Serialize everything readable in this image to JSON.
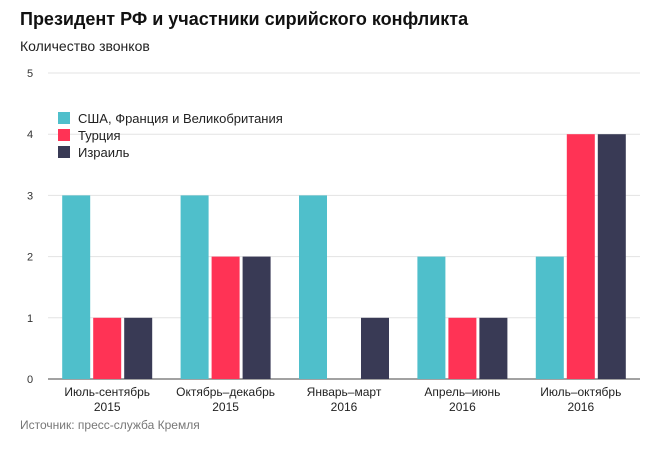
{
  "title": "Президент РФ и участники сирийского конфликта",
  "source": "Источник: пресс-служба Кремля",
  "colors": {
    "series1": "#4fbfcb",
    "series2": "#ff3355",
    "series3": "#393a55"
  },
  "chart_data": {
    "type": "bar",
    "categories": [
      [
        "Июль-сентябрь",
        "2015"
      ],
      [
        "Октябрь–декабрь",
        "2015"
      ],
      [
        "Январь–март",
        "2016"
      ],
      [
        "Апрель–июнь",
        "2016"
      ],
      [
        "Июль–октябрь",
        "2016"
      ]
    ],
    "series": [
      {
        "name": "США, Франция и Великобритания",
        "values": [
          3,
          3,
          3,
          2,
          2
        ]
      },
      {
        "name": "Турция",
        "values": [
          1,
          2,
          0,
          1,
          4
        ]
      },
      {
        "name": "Израиль",
        "values": [
          1,
          2,
          1,
          1,
          4
        ]
      }
    ],
    "ylabel": "Количество звонков",
    "ylim": [
      0,
      5
    ],
    "yticks": [
      0,
      1,
      2,
      3,
      4,
      5
    ],
    "grid": true,
    "legend_position": "top-left"
  }
}
